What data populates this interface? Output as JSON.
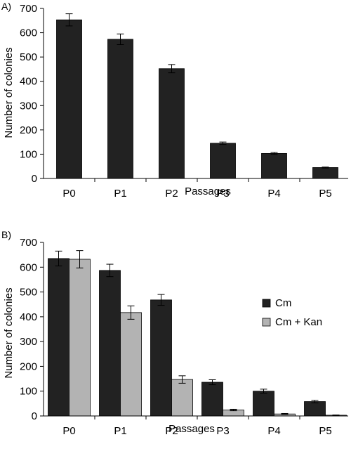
{
  "chart_data": [
    {
      "panel": "A)",
      "type": "bar",
      "categories": [
        "P0",
        "P1",
        "P2",
        "P3",
        "P4",
        "P5"
      ],
      "series": [
        {
          "values": [
            653,
            573,
            452,
            145,
            103,
            45
          ],
          "errors": [
            25,
            22,
            17,
            5,
            4,
            2
          ],
          "color": "#222222"
        }
      ],
      "xlabel": "Passages",
      "ylabel": "Number of colonies",
      "ylim": [
        0,
        700
      ],
      "yticks": [
        "0",
        "100",
        "200",
        "300",
        "400",
        "500",
        "600",
        "700"
      ],
      "grid": false,
      "legend": false
    },
    {
      "panel": "B)",
      "type": "bar",
      "categories": [
        "P0",
        "P1",
        "P2",
        "P3",
        "P4",
        "P5"
      ],
      "series": [
        {
          "name": "Cm",
          "values": [
            635,
            587,
            468,
            136,
            100,
            58
          ],
          "errors": [
            30,
            25,
            22,
            10,
            8,
            5
          ],
          "color": "#222222"
        },
        {
          "name": "Cm + Kan",
          "values": [
            632,
            417,
            147,
            24,
            8,
            3
          ],
          "errors": [
            35,
            27,
            15,
            3,
            2,
            1
          ],
          "color": "#b3b3b3"
        }
      ],
      "xlabel": "Passages",
      "ylabel": "Number of colonies",
      "ylim": [
        0,
        700
      ],
      "yticks": [
        "0",
        "100",
        "200",
        "300",
        "400",
        "500",
        "600",
        "700"
      ],
      "grid": false,
      "legend": "right"
    }
  ]
}
